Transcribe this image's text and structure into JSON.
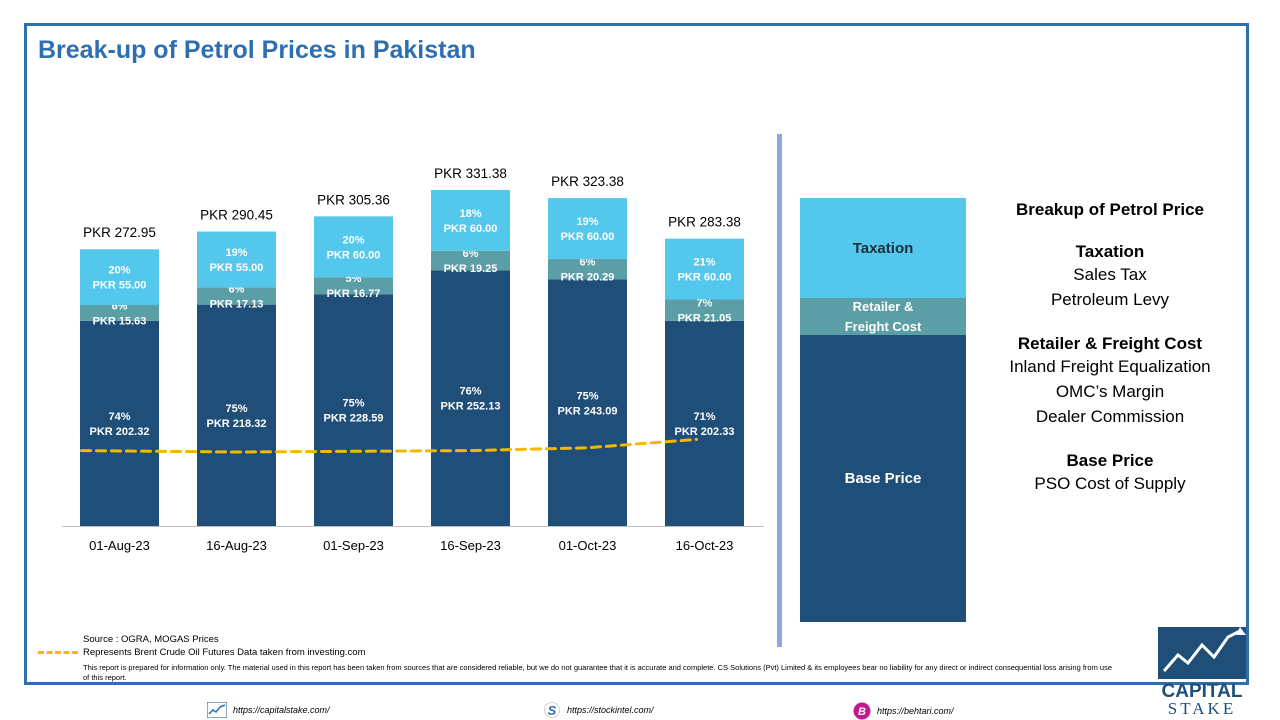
{
  "title": "Break-up of Petrol Prices in Pakistan",
  "chart_data": {
    "type": "bar",
    "stacked": true,
    "categories": [
      "01-Aug-23",
      "16-Aug-23",
      "01-Sep-23",
      "16-Sep-23",
      "01-Oct-23",
      "16-Oct-23"
    ],
    "series": [
      {
        "name": "Base Price",
        "color": "#1f4e79",
        "values": [
          202.32,
          218.32,
          228.59,
          252.13,
          243.09,
          202.33
        ],
        "labels": [
          "74%\nPKR 202.32",
          "75%\nPKR 218.32",
          "75%\nPKR 228.59",
          "76%\nPKR 252.13",
          "75%\nPKR 243.09",
          "71%\nPKR 202.33"
        ]
      },
      {
        "name": "Retailer & Freight Cost",
        "color": "#5b9ea6",
        "values": [
          15.63,
          17.13,
          16.77,
          19.25,
          20.29,
          21.05
        ],
        "labels": [
          "6%\nPKR 15.63",
          "6%\nPKR 17.13",
          "5%\nPKR 16.77",
          "6%\nPKR 19.25",
          "6%\nPKR 20.29",
          "7%\nPKR 21.05"
        ]
      },
      {
        "name": "Taxation",
        "color": "#54c8ec",
        "values": [
          55.0,
          55.0,
          60.0,
          60.0,
          60.0,
          60.0
        ],
        "labels": [
          "20%\nPKR 55.00",
          "19%\nPKR 55.00",
          "20%\nPKR 60.00",
          "18%\nPKR 60.00",
          "19%\nPKR 60.00",
          "21%\nPKR 60.00"
        ]
      }
    ],
    "totals": [
      "PKR 272.95",
      "PKR 290.45",
      "PKR 305.36",
      "PKR 331.38",
      "PKR 323.38",
      "PKR 283.38"
    ],
    "brent_line": {
      "color": "#f5b800",
      "style": "dashed",
      "relative_level": [
        0.97,
        0.96,
        0.965,
        0.97,
        0.99,
        1.05
      ]
    },
    "ylim": [
      0,
      340
    ]
  },
  "legend_stack": {
    "taxation": "Taxation",
    "retailer": "Retailer &\nFreight Cost",
    "base": "Base Price"
  },
  "explain": {
    "heading": "Breakup of Petrol Price",
    "taxation_h": "Taxation",
    "taxation_items": [
      "Sales Tax",
      "Petroleum Levy"
    ],
    "retailer_h": "Retailer & Freight Cost",
    "retailer_items": [
      "Inland Freight Equalization",
      "OMC’s Margin",
      "Dealer Commission"
    ],
    "base_h": "Base Price",
    "base_items": [
      "PSO Cost of Supply"
    ]
  },
  "source": "Source : OGRA, MOGAS Prices",
  "legend_note": "Represents Brent Crude Oil Futures Data taken from investing.com",
  "disclaimer": "This report is prepared for information only. The material used in this report has been taken from sources that are considered reliable, but we do not guarantee that it is accurate and complete. CS Solutions (Pvt) Limited & its employees bear no liability for any direct or indirect consequential loss arising from use of this report.",
  "footer": {
    "link1": "https://capitalstake.com/",
    "link2": "https://stockintel.com/",
    "link3": "https://behtari.com/"
  },
  "logo": {
    "line1": "CAPITAL",
    "line2": "STAKE"
  }
}
